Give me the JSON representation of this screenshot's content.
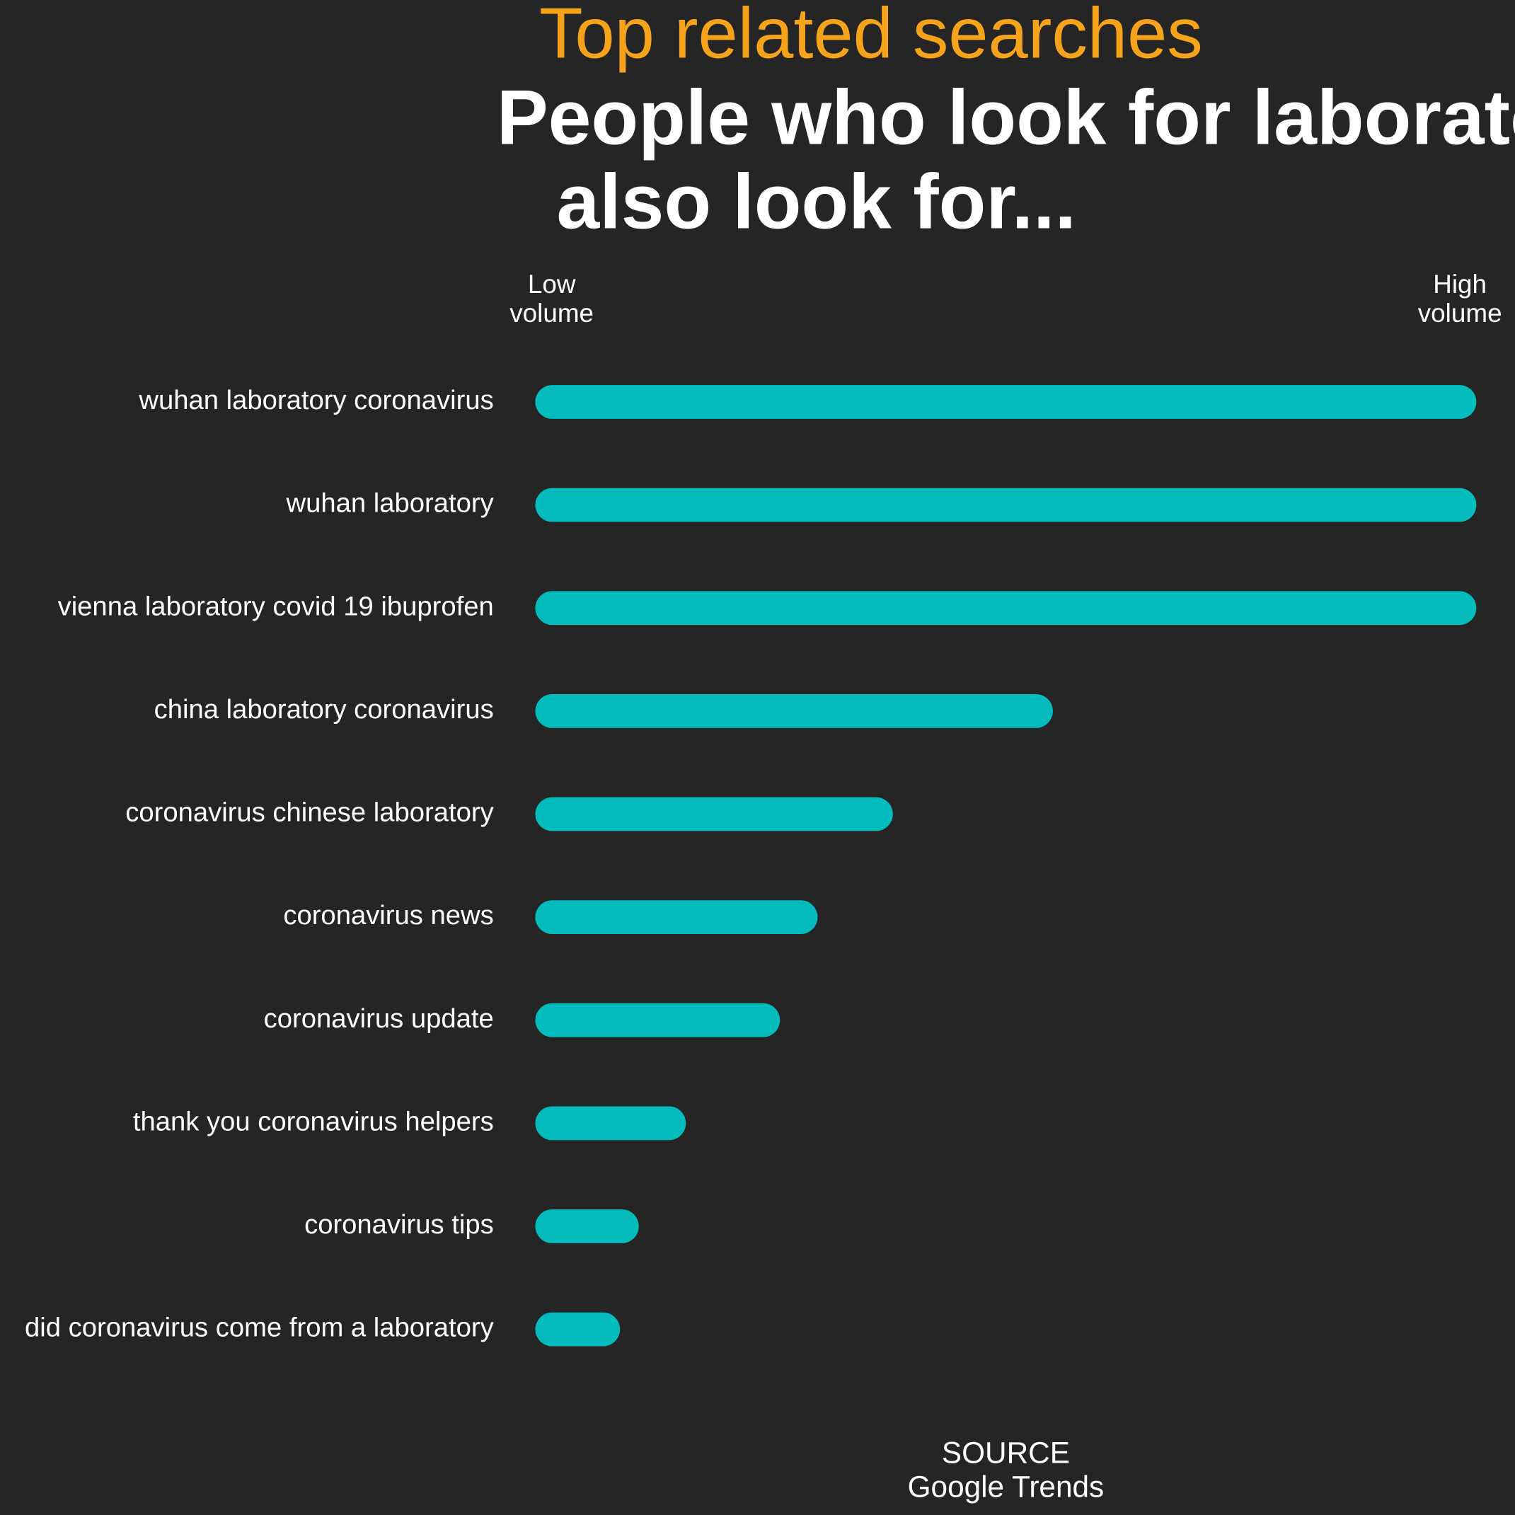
{
  "chart_data": {
    "type": "bar",
    "orientation": "horizontal",
    "title": "Top related searches",
    "subtitle": [
      "People who look for laborato",
      "also look for..."
    ],
    "low_label": [
      "Low",
      "volume"
    ],
    "high_label": [
      "High",
      "volume"
    ],
    "source": [
      "SOURCE",
      "Google Trends"
    ],
    "categories": [
      "wuhan laboratory coronavirus",
      "wuhan laboratory",
      "vienna laboratory covid 19 ibuprofen",
      "china laboratory coronavirus",
      "coronavirus chinese laboratory",
      "coronavirus news",
      "coronavirus update",
      "thank you coronavirus helpers",
      "coronavirus tips",
      "did coronavirus come from a laboratory"
    ],
    "values": [
      100,
      100,
      100,
      55,
      38,
      30,
      26,
      16,
      11,
      9
    ],
    "color": "#04bcbc",
    "xlim": [
      0,
      100
    ]
  }
}
